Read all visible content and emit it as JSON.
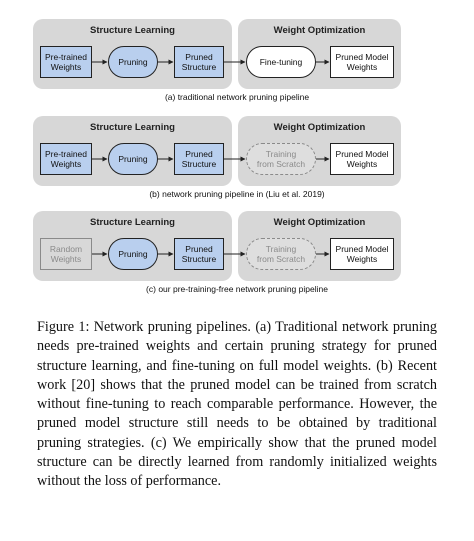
{
  "rows": [
    {
      "left_title": "Structure Learning",
      "right_title": "Weight Optimization",
      "n1": "Pre-trained\nWeights",
      "n2": "Pruning",
      "n3": "Pruned\nStructure",
      "n4": "Fine-tuning",
      "n5": "Pruned Model\nWeights",
      "caption": "(a) traditional network pruning pipeline"
    },
    {
      "left_title": "Structure Learning",
      "right_title": "Weight Optimization",
      "n1": "Pre-trained\nWeights",
      "n2": "Pruning",
      "n3": "Pruned\nStructure",
      "n4": "Training\nfrom Scratch",
      "n5": "Pruned Model\nWeights",
      "caption": "(b) network pruning pipeline in (Liu et al. 2019)"
    },
    {
      "left_title": "Structure Learning",
      "right_title": "Weight Optimization",
      "n1": "Random\nWeights",
      "n2": "Pruning",
      "n3": "Pruned\nStructure",
      "n4": "Training\nfrom Scratch",
      "n5": "Pruned Model\nWeights",
      "caption": "(c) our pre-training-free network pruning pipeline"
    }
  ],
  "figure_caption": "Figure 1: Network pruning pipelines. (a) Traditional network pruning needs pre-trained weights and certain pruning strategy for pruned structure learning, and fine-tuning on full model weights. (b) Recent work [20] shows that the pruned model can be trained from scratch without fine-tuning to reach comparable performance. However, the pruned model structure still needs to be obtained by traditional pruning strategies. (c) We empirically show that the pruned model structure can be directly learned from randomly initialized weights without the loss of performance.",
  "colors": {
    "panel": "#d7d7d7",
    "node_blue": "#b9cfee",
    "muted_gray": "#8a8a8a"
  }
}
